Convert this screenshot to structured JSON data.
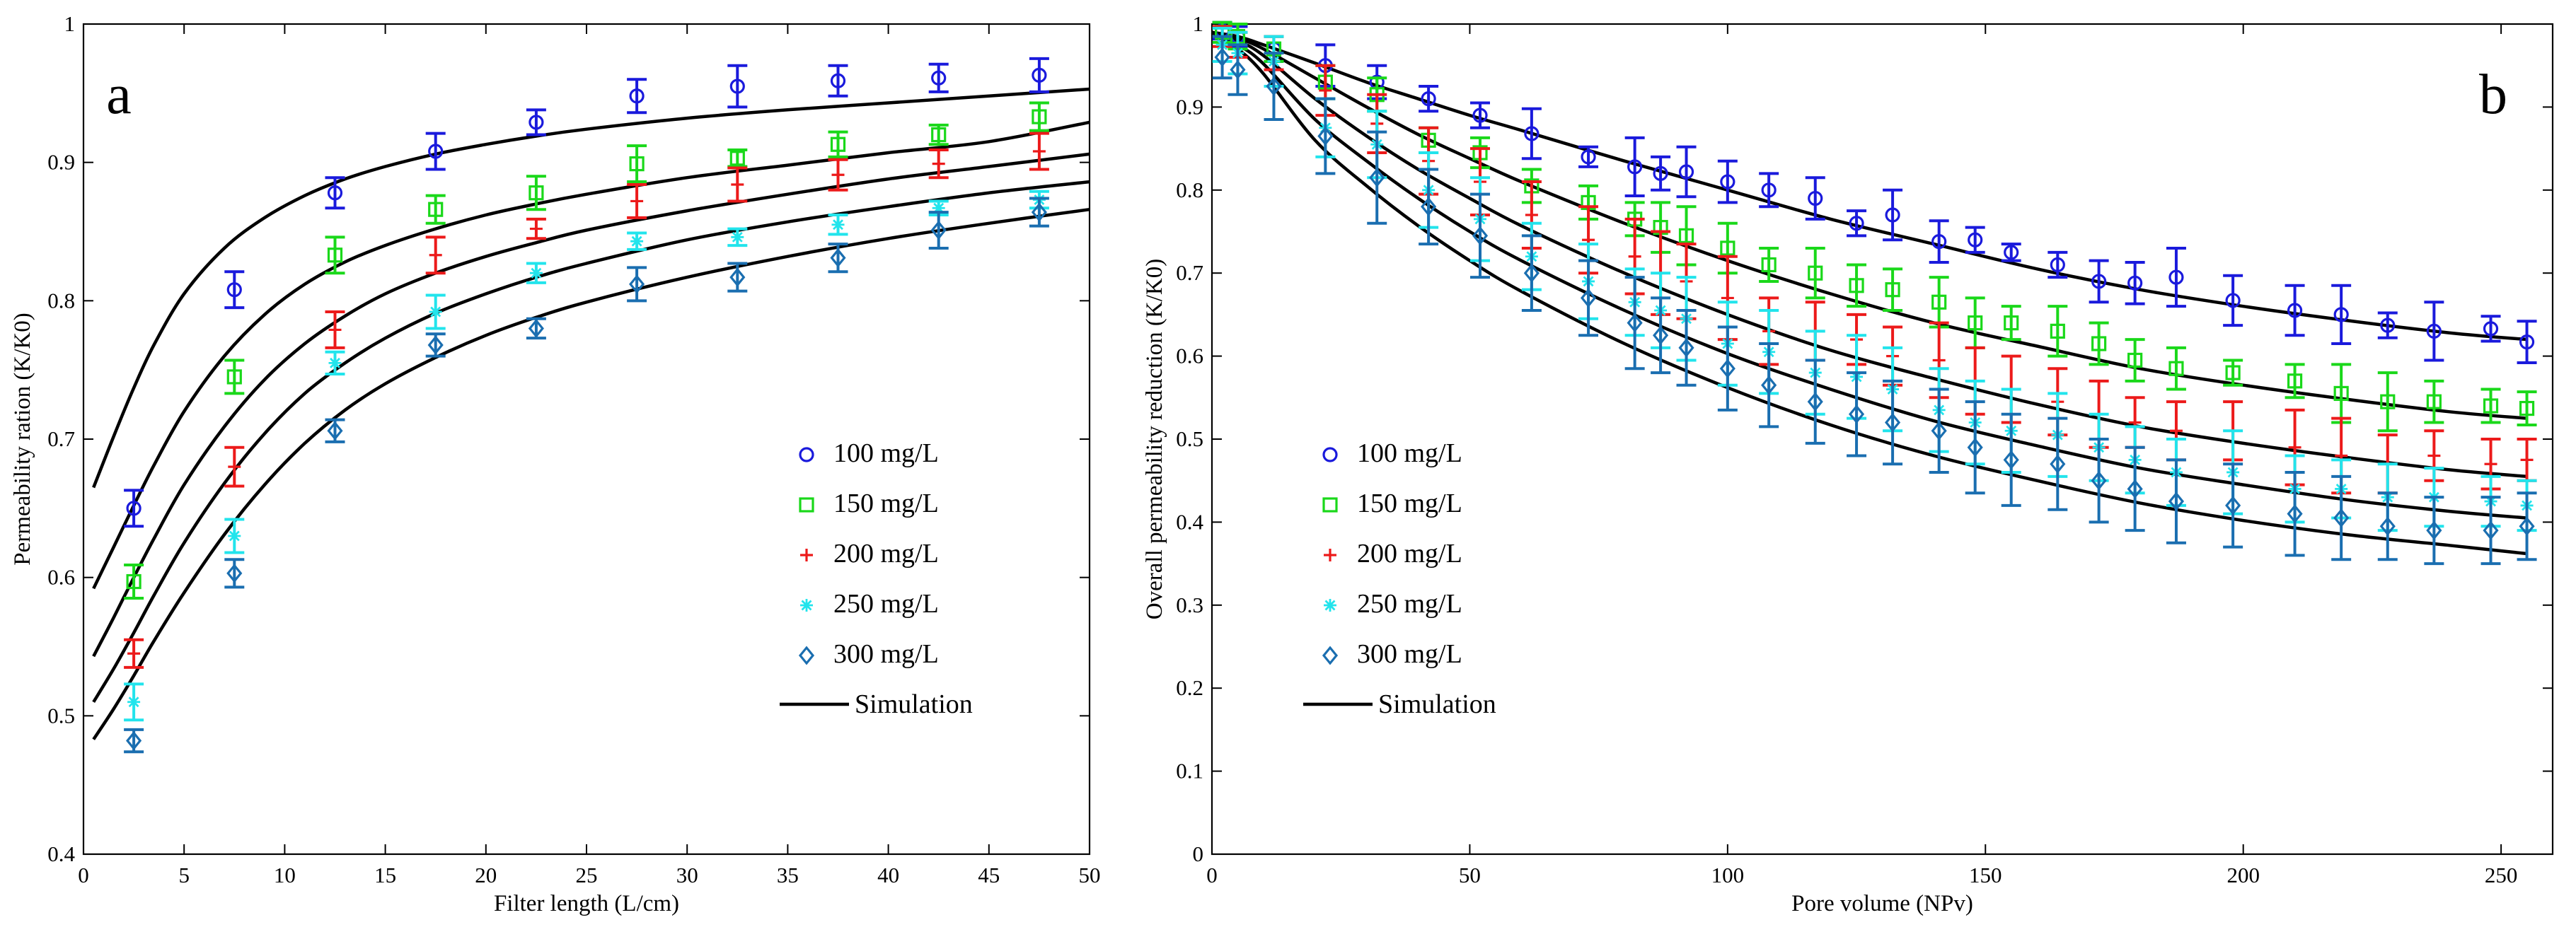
{
  "chart_data": [
    {
      "type": "scatter",
      "panel_label": "a",
      "xlabel": "Filter length (L/cm)",
      "ylabel": "Permeability ration (K/K0)",
      "xlim": [
        0,
        50
      ],
      "ylim": [
        0.4,
        1
      ],
      "xticks": [
        0,
        5,
        10,
        15,
        20,
        25,
        30,
        35,
        40,
        45,
        50
      ],
      "yticks": [
        0.4,
        0.5,
        0.6,
        0.7,
        0.8,
        0.9,
        1
      ],
      "xtick_labels": [
        "0",
        "5",
        "10",
        "15",
        "20",
        "25",
        "30",
        "35",
        "40",
        "45",
        "50"
      ],
      "ytick_labels": [
        "0.4",
        "0.5",
        "0.6",
        "0.7",
        "0.8",
        "0.9",
        "1"
      ],
      "legend_position": "center-right",
      "x": [
        2.5,
        7.5,
        12.5,
        17.5,
        22.5,
        27.5,
        32.5,
        37.5,
        42.5,
        47.5
      ],
      "series": [
        {
          "name": "100 mg/L",
          "marker": "circle",
          "color": "#1a1adc",
          "values": [
            0.65,
            0.808,
            0.878,
            0.908,
            0.929,
            0.948,
            0.955,
            0.959,
            0.961,
            0.963
          ],
          "errors": [
            0.013,
            0.013,
            0.011,
            0.013,
            0.009,
            0.012,
            0.015,
            0.011,
            0.01,
            0.012
          ]
        },
        {
          "name": "150 mg/L",
          "marker": "square",
          "color": "#1ad81a",
          "values": [
            0.597,
            0.745,
            0.833,
            0.866,
            0.878,
            0.899,
            0.903,
            0.913,
            0.92,
            0.933
          ],
          "errors": [
            0.012,
            0.012,
            0.013,
            0.01,
            0.012,
            0.013,
            0.006,
            0.009,
            0.007,
            0.01
          ]
        },
        {
          "name": "200 mg/L",
          "marker": "plus",
          "color": "#ec1a1a",
          "values": [
            0.545,
            0.68,
            0.779,
            0.833,
            0.852,
            0.872,
            0.884,
            0.891,
            0.899,
            0.908
          ],
          "errors": [
            0.01,
            0.014,
            0.013,
            0.013,
            0.007,
            0.012,
            0.012,
            0.011,
            0.01,
            0.013
          ]
        },
        {
          "name": "250 mg/L",
          "marker": "asterisk",
          "color": "#22e4ec",
          "values": [
            0.51,
            0.63,
            0.755,
            0.792,
            0.82,
            0.843,
            0.846,
            0.855,
            0.867,
            0.873
          ],
          "errors": [
            0.013,
            0.012,
            0.008,
            0.012,
            0.007,
            0.006,
            0.006,
            0.007,
            0.005,
            0.006
          ]
        },
        {
          "name": "300 mg/L",
          "marker": "diamond",
          "color": "#1a6eb0",
          "values": [
            0.482,
            0.603,
            0.706,
            0.768,
            0.78,
            0.812,
            0.817,
            0.831,
            0.851,
            0.864
          ],
          "errors": [
            0.008,
            0.01,
            0.008,
            0.008,
            0.007,
            0.012,
            0.01,
            0.01,
            0.013,
            0.01
          ]
        }
      ],
      "simulation": {
        "name": "Simulation",
        "x": [
          0.5,
          1.5,
          2.5,
          3.5,
          5,
          7,
          9,
          11,
          13,
          15,
          17.5,
          20,
          22.5,
          25,
          30,
          35,
          40,
          45,
          50
        ],
        "curves": [
          [
            0.665,
            0.702,
            0.737,
            0.768,
            0.805,
            0.838,
            0.86,
            0.876,
            0.888,
            0.897,
            0.906,
            0.913,
            0.919,
            0.924,
            0.932,
            0.938,
            0.943,
            0.948,
            0.953
          ],
          [
            0.592,
            0.622,
            0.652,
            0.681,
            0.72,
            0.76,
            0.79,
            0.812,
            0.828,
            0.84,
            0.852,
            0.862,
            0.87,
            0.877,
            0.889,
            0.898,
            0.907,
            0.915,
            0.929
          ],
          [
            0.543,
            0.571,
            0.6,
            0.628,
            0.667,
            0.709,
            0.743,
            0.769,
            0.789,
            0.805,
            0.82,
            0.832,
            0.842,
            0.851,
            0.865,
            0.877,
            0.888,
            0.897,
            0.906
          ],
          [
            0.51,
            0.534,
            0.56,
            0.587,
            0.625,
            0.668,
            0.704,
            0.733,
            0.755,
            0.773,
            0.791,
            0.805,
            0.817,
            0.827,
            0.844,
            0.857,
            0.868,
            0.878,
            0.886
          ],
          [
            0.483,
            0.505,
            0.529,
            0.554,
            0.589,
            0.631,
            0.667,
            0.697,
            0.721,
            0.74,
            0.759,
            0.775,
            0.788,
            0.799,
            0.817,
            0.832,
            0.845,
            0.856,
            0.866
          ]
        ]
      }
    },
    {
      "type": "scatter",
      "panel_label": "b",
      "xlabel": "Pore volume (NPv)",
      "ylabel": "Overall permeability reduction (K/K0)",
      "xlim": [
        0,
        260
      ],
      "ylim": [
        0,
        1
      ],
      "xticks": [
        0,
        50,
        100,
        150,
        200,
        250
      ],
      "yticks": [
        0,
        0.1,
        0.2,
        0.3,
        0.4,
        0.5,
        0.6,
        0.7,
        0.8,
        0.9,
        1
      ],
      "xtick_labels": [
        "0",
        "50",
        "100",
        "150",
        "200",
        "250"
      ],
      "ytick_labels": [
        "0",
        "0.1",
        "0.2",
        "0.3",
        "0.4",
        "0.5",
        "0.6",
        "0.7",
        "0.8",
        "0.9",
        "1"
      ],
      "legend_position": "center-left",
      "x": [
        2,
        5,
        12,
        22,
        32,
        42,
        52,
        62,
        73,
        82,
        87,
        92,
        100,
        108,
        117,
        125,
        132,
        141,
        148,
        155,
        164,
        172,
        179,
        187,
        198,
        210,
        219,
        228,
        237,
        248,
        255
      ],
      "series": [
        {
          "name": "100 mg/L",
          "marker": "circle",
          "color": "#1a1adc",
          "values": [
            0.992,
            0.985,
            0.97,
            0.95,
            0.93,
            0.91,
            0.89,
            0.868,
            0.84,
            0.828,
            0.82,
            0.822,
            0.81,
            0.8,
            0.79,
            0.76,
            0.77,
            0.738,
            0.74,
            0.725,
            0.71,
            0.69,
            0.688,
            0.695,
            0.667,
            0.655,
            0.65,
            0.637,
            0.63,
            0.633,
            0.617
          ],
          "errors": [
            0.01,
            0.012,
            0.015,
            0.025,
            0.02,
            0.015,
            0.015,
            0.03,
            0.012,
            0.035,
            0.02,
            0.03,
            0.025,
            0.02,
            0.025,
            0.015,
            0.03,
            0.025,
            0.015,
            0.01,
            0.015,
            0.025,
            0.025,
            0.035,
            0.03,
            0.03,
            0.035,
            0.015,
            0.035,
            0.015,
            0.025
          ]
        },
        {
          "name": "150 mg/L",
          "marker": "square",
          "color": "#1ad81a",
          "values": [
            0.99,
            0.985,
            0.97,
            0.93,
            0.915,
            0.86,
            0.845,
            0.805,
            0.785,
            0.765,
            0.755,
            0.745,
            0.73,
            0.71,
            0.7,
            0.685,
            0.68,
            0.665,
            0.64,
            0.64,
            0.63,
            0.615,
            0.595,
            0.585,
            0.58,
            0.57,
            0.555,
            0.545,
            0.545,
            0.54,
            0.537
          ],
          "errors": [
            0.012,
            0.015,
            0.015,
            0.02,
            0.02,
            0.015,
            0.018,
            0.02,
            0.02,
            0.02,
            0.03,
            0.035,
            0.03,
            0.02,
            0.03,
            0.025,
            0.025,
            0.03,
            0.03,
            0.02,
            0.03,
            0.025,
            0.025,
            0.025,
            0.015,
            0.02,
            0.035,
            0.035,
            0.025,
            0.02,
            0.02
          ]
        },
        {
          "name": "200 mg/L",
          "marker": "plus",
          "color": "#ec1a1a",
          "values": [
            0.985,
            0.975,
            0.965,
            0.92,
            0.88,
            0.835,
            0.81,
            0.77,
            0.74,
            0.72,
            0.7,
            0.69,
            0.67,
            0.63,
            0.63,
            0.62,
            0.6,
            0.595,
            0.57,
            0.56,
            0.545,
            0.53,
            0.52,
            0.51,
            0.51,
            0.49,
            0.48,
            0.47,
            0.48,
            0.47,
            0.475
          ],
          "errors": [
            0.012,
            0.015,
            0.02,
            0.03,
            0.035,
            0.04,
            0.04,
            0.04,
            0.04,
            0.045,
            0.05,
            0.045,
            0.05,
            0.04,
            0.035,
            0.03,
            0.035,
            0.045,
            0.04,
            0.04,
            0.04,
            0.04,
            0.03,
            0.035,
            0.035,
            0.045,
            0.045,
            0.035,
            0.03,
            0.03,
            0.025
          ]
        },
        {
          "name": "250 mg/L",
          "marker": "asterisk",
          "color": "#22e4ec",
          "values": [
            0.975,
            0.965,
            0.955,
            0.875,
            0.855,
            0.8,
            0.765,
            0.72,
            0.69,
            0.665,
            0.655,
            0.645,
            0.615,
            0.605,
            0.58,
            0.575,
            0.56,
            0.535,
            0.52,
            0.51,
            0.505,
            0.49,
            0.475,
            0.46,
            0.46,
            0.44,
            0.44,
            0.43,
            0.43,
            0.425,
            0.42
          ],
          "errors": [
            0.02,
            0.025,
            0.03,
            0.035,
            0.04,
            0.045,
            0.05,
            0.04,
            0.045,
            0.04,
            0.045,
            0.05,
            0.05,
            0.05,
            0.05,
            0.05,
            0.05,
            0.05,
            0.05,
            0.05,
            0.05,
            0.04,
            0.04,
            0.04,
            0.05,
            0.04,
            0.035,
            0.04,
            0.035,
            0.03,
            0.03
          ]
        },
        {
          "name": "300 mg/L",
          "marker": "diamond",
          "color": "#1a6eb0",
          "values": [
            0.96,
            0.945,
            0.925,
            0.865,
            0.815,
            0.78,
            0.745,
            0.7,
            0.67,
            0.64,
            0.625,
            0.61,
            0.585,
            0.565,
            0.545,
            0.53,
            0.52,
            0.51,
            0.49,
            0.475,
            0.47,
            0.45,
            0.44,
            0.425,
            0.42,
            0.41,
            0.405,
            0.395,
            0.39,
            0.39,
            0.395
          ],
          "errors": [
            0.025,
            0.03,
            0.04,
            0.045,
            0.055,
            0.045,
            0.05,
            0.045,
            0.045,
            0.055,
            0.045,
            0.045,
            0.05,
            0.05,
            0.05,
            0.05,
            0.05,
            0.05,
            0.055,
            0.055,
            0.055,
            0.05,
            0.05,
            0.05,
            0.05,
            0.05,
            0.05,
            0.04,
            0.04,
            0.04,
            0.04
          ]
        }
      ],
      "simulation": {
        "name": "Simulation",
        "x": [
          0,
          5,
          10,
          20,
          30,
          40,
          50,
          60,
          80,
          100,
          120,
          140,
          160,
          180,
          200,
          220,
          240,
          255
        ],
        "curves": [
          [
            0.99,
            0.985,
            0.975,
            0.953,
            0.93,
            0.91,
            0.89,
            0.872,
            0.835,
            0.8,
            0.765,
            0.735,
            0.705,
            0.68,
            0.66,
            0.643,
            0.628,
            0.62
          ],
          [
            0.99,
            0.983,
            0.97,
            0.935,
            0.9,
            0.867,
            0.838,
            0.81,
            0.76,
            0.715,
            0.675,
            0.64,
            0.612,
            0.585,
            0.565,
            0.548,
            0.533,
            0.525
          ],
          [
            0.99,
            0.98,
            0.962,
            0.91,
            0.865,
            0.825,
            0.79,
            0.757,
            0.7,
            0.65,
            0.607,
            0.573,
            0.542,
            0.515,
            0.495,
            0.478,
            0.463,
            0.455
          ],
          [
            0.99,
            0.975,
            0.952,
            0.885,
            0.835,
            0.79,
            0.75,
            0.715,
            0.655,
            0.603,
            0.56,
            0.522,
            0.492,
            0.465,
            0.445,
            0.427,
            0.413,
            0.405
          ],
          [
            0.99,
            0.97,
            0.94,
            0.86,
            0.805,
            0.757,
            0.715,
            0.678,
            0.615,
            0.562,
            0.517,
            0.48,
            0.45,
            0.423,
            0.402,
            0.385,
            0.372,
            0.362
          ]
        ]
      }
    }
  ]
}
